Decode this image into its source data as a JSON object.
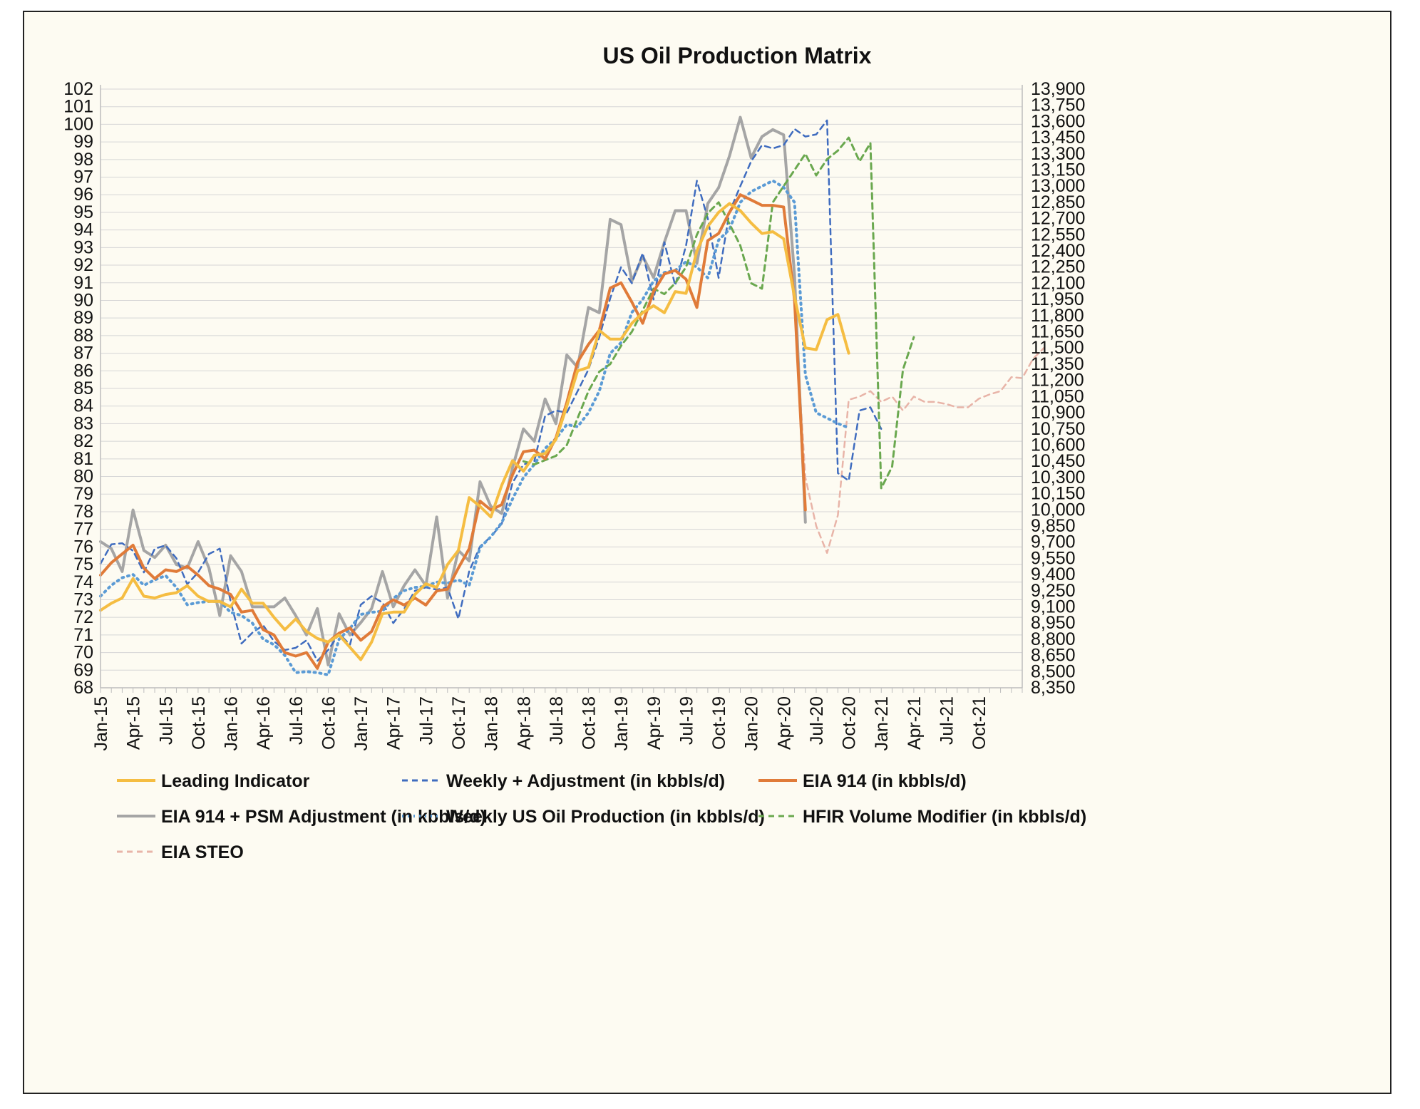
{
  "chart_data": {
    "type": "line",
    "title": "US Oil Production Matrix",
    "xlabel": "",
    "ylabel": "",
    "y2label": "",
    "ylim": [
      68,
      102
    ],
    "y2lim": [
      8350,
      13900
    ],
    "y_ticks": [
      "68",
      "69",
      "70",
      "71",
      "72",
      "73",
      "74",
      "75",
      "76",
      "77",
      "78",
      "79",
      "80",
      "81",
      "82",
      "83",
      "84",
      "85",
      "86",
      "87",
      "88",
      "89",
      "90",
      "91",
      "92",
      "93",
      "94",
      "95",
      "96",
      "97",
      "98",
      "99",
      "100",
      "101",
      "102"
    ],
    "y2_ticks": [
      "8,350",
      "8,500",
      "8,650",
      "8,800",
      "8,950",
      "9,100",
      "9,250",
      "9,400",
      "9,550",
      "9,700",
      "9,850",
      "10,000",
      "10,150",
      "10,300",
      "10,450",
      "10,600",
      "10,750",
      "10,900",
      "11,050",
      "11,200",
      "11,350",
      "11,500",
      "11,650",
      "11,800",
      "11,950",
      "12,100",
      "12,250",
      "12,400",
      "12,550",
      "12,700",
      "12,850",
      "13,000",
      "13,150",
      "13,300",
      "13,450",
      "13,600",
      "13,750",
      "13,900"
    ],
    "x_ticks": [
      "Jan-15",
      "Apr-15",
      "Jul-15",
      "Oct-15",
      "Jan-16",
      "Apr-16",
      "Jul-16",
      "Oct-16",
      "Jan-17",
      "Apr-17",
      "Jul-17",
      "Oct-17",
      "Jan-18",
      "Apr-18",
      "Jul-18",
      "Oct-18",
      "Jan-19",
      "Apr-19",
      "Jul-19",
      "Oct-19",
      "Jan-20",
      "Apr-20",
      "Jul-20",
      "Oct-20",
      "Jan-21",
      "Apr-21",
      "Jul-21",
      "Oct-21"
    ],
    "x_start": "Jan-15",
    "months": 85,
    "grid": true,
    "legend_position": "bottom",
    "series": [
      {
        "name": "Leading Indicator",
        "axis": "left",
        "color": "#f5bd42",
        "dash": "solid",
        "width": 4,
        "start": 0,
        "values": [
          72.4,
          72.8,
          73.1,
          74.2,
          73.2,
          73.1,
          73.3,
          73.4,
          73.8,
          73.2,
          72.9,
          72.9,
          72.6,
          73.6,
          72.8,
          72.8,
          72.0,
          71.3,
          71.9,
          71.2,
          70.8,
          70.6,
          71.0,
          70.3,
          69.6,
          70.6,
          72.2,
          72.3,
          72.3,
          73.3,
          73.9,
          73.7,
          75.0,
          75.8,
          78.8,
          78.3,
          77.7,
          79.5,
          80.9,
          80.3,
          81.2,
          81.3,
          82.1,
          84.0,
          86.0,
          86.2,
          88.3,
          87.8,
          87.8,
          88.7,
          89.3,
          89.7,
          89.3,
          90.5,
          90.4,
          92.8,
          94.2,
          95.0,
          95.5,
          95.1,
          94.4,
          93.8,
          93.9,
          93.5,
          90.2,
          87.3,
          87.2,
          88.9,
          89.2,
          87.0
        ]
      },
      {
        "name": "Weekly + Adjustment (in kbbls/d)",
        "axis": "right",
        "color": "#3f6cbf",
        "dash": "8,6",
        "width": 2.5,
        "start": 0,
        "values": [
          9500,
          9680,
          9690,
          9620,
          9420,
          9640,
          9670,
          9550,
          9310,
          9420,
          9590,
          9640,
          9150,
          8760,
          8860,
          8930,
          8780,
          8700,
          8720,
          8790,
          8600,
          8700,
          8850,
          8750,
          9120,
          9200,
          9140,
          8950,
          9080,
          9250,
          9280,
          9260,
          9280,
          8990,
          9430,
          9660,
          9750,
          9870,
          10250,
          10420,
          10450,
          10870,
          10920,
          10900,
          11100,
          11300,
          11600,
          11960,
          12250,
          12100,
          12380,
          11950,
          12480,
          12080,
          12450,
          13050,
          12700,
          12150,
          12760,
          13000,
          13230,
          13380,
          13350,
          13380,
          13530,
          13460,
          13480,
          13610,
          10340,
          10270,
          10920,
          10950,
          10750
        ]
      },
      {
        "name": "EIA 914 (in kbbls/d)",
        "axis": "left",
        "color": "#e07b39",
        "dash": "solid",
        "width": 4,
        "start": 0,
        "values": [
          74.4,
          75.1,
          75.6,
          76.1,
          74.8,
          74.2,
          74.7,
          74.6,
          74.9,
          74.4,
          73.8,
          73.6,
          73.3,
          72.3,
          72.4,
          71.3,
          71.0,
          70.0,
          69.8,
          70.0,
          69.1,
          70.6,
          71.1,
          71.4,
          70.7,
          71.2,
          72.6,
          73.0,
          72.7,
          73.1,
          72.7,
          73.5,
          73.6,
          74.8,
          75.9,
          78.6,
          78.1,
          78.4,
          80.1,
          81.4,
          81.5,
          81.0,
          82.2,
          84.2,
          86.5,
          87.5,
          88.3,
          90.7,
          91.0,
          89.9,
          88.7,
          90.5,
          91.5,
          91.7,
          91.2,
          89.6,
          93.4,
          93.8,
          95.0,
          96.0,
          95.7,
          95.4,
          95.4,
          95.3,
          90.0,
          78.1
        ]
      },
      {
        "name": "EIA 914 + PSM Adjustment (in kbbls/d)",
        "axis": "left",
        "color": "#a5a5a5",
        "dash": "solid",
        "width": 4,
        "start": 0,
        "values": [
          76.3,
          75.9,
          74.6,
          78.1,
          75.8,
          75.4,
          76.1,
          75.0,
          74.8,
          76.3,
          74.8,
          72.1,
          75.5,
          74.6,
          72.6,
          72.6,
          72.6,
          73.1,
          72.1,
          71.0,
          72.5,
          69.3,
          72.2,
          71.0,
          71.7,
          72.5,
          74.6,
          72.6,
          73.8,
          74.7,
          73.8,
          77.7,
          73.1,
          75.8,
          75.2,
          79.7,
          78.3,
          77.9,
          80.5,
          82.7,
          82.0,
          84.4,
          83.0,
          86.9,
          86.2,
          89.6,
          89.3,
          94.6,
          94.3,
          91.1,
          92.5,
          91.3,
          93.3,
          95.1,
          95.1,
          92.1,
          95.5,
          96.4,
          98.2,
          100.4,
          98.1,
          99.3,
          99.7,
          99.4,
          91.4,
          77.4
        ]
      },
      {
        "name": "Weekly US Oil Production (in kbbls/d)",
        "axis": "right",
        "color": "#5b9bd5",
        "dash": "2,6",
        "width": 4,
        "start": 0,
        "values": [
          9200,
          9300,
          9370,
          9400,
          9300,
          9350,
          9390,
          9280,
          9120,
          9140,
          9150,
          9150,
          9050,
          9020,
          8950,
          8800,
          8750,
          8650,
          8490,
          8500,
          8490,
          8470,
          8800,
          8900,
          9030,
          9050,
          9060,
          9180,
          9250,
          9280,
          9290,
          9330,
          9320,
          9350,
          9300,
          9650,
          9750,
          9880,
          10100,
          10300,
          10420,
          10570,
          10660,
          10790,
          10770,
          10900,
          11100,
          11450,
          11550,
          11830,
          11950,
          12120,
          12200,
          12220,
          12300,
          12250,
          12150,
          12500,
          12600,
          12850,
          12950,
          13000,
          13050,
          12990,
          12850,
          11250,
          10900,
          10850,
          10800,
          10760
        ]
      },
      {
        "name": "HFIR Volume Modifier (in kbbls/d)",
        "axis": "right",
        "color": "#6aa84f",
        "dash": "8,6",
        "width": 3,
        "start": 39,
        "values": [
          10450,
          10420,
          10460,
          10500,
          10600,
          10850,
          11100,
          11280,
          11350,
          11520,
          11650,
          11850,
          12050,
          12000,
          12100,
          12250,
          12550,
          12750,
          12850,
          12650,
          12450,
          12100,
          12050,
          12850,
          13000,
          13150,
          13300,
          13100,
          13250,
          13330,
          13450,
          13230,
          13400,
          10200,
          10400,
          11300,
          11600
        ]
      },
      {
        "name": "EIA STEO",
        "axis": "right",
        "color": "#e8b4a8",
        "dash": "8,6",
        "width": 2.5,
        "start": 64,
        "values": [
          11900,
          10300,
          9850,
          9600,
          9950,
          11020,
          11050,
          11100,
          11000,
          11050,
          10920,
          11050,
          11000,
          11000,
          10980,
          10950,
          10950,
          11030,
          11070,
          11100,
          11230,
          11220,
          11400,
          11500
        ]
      }
    ]
  }
}
